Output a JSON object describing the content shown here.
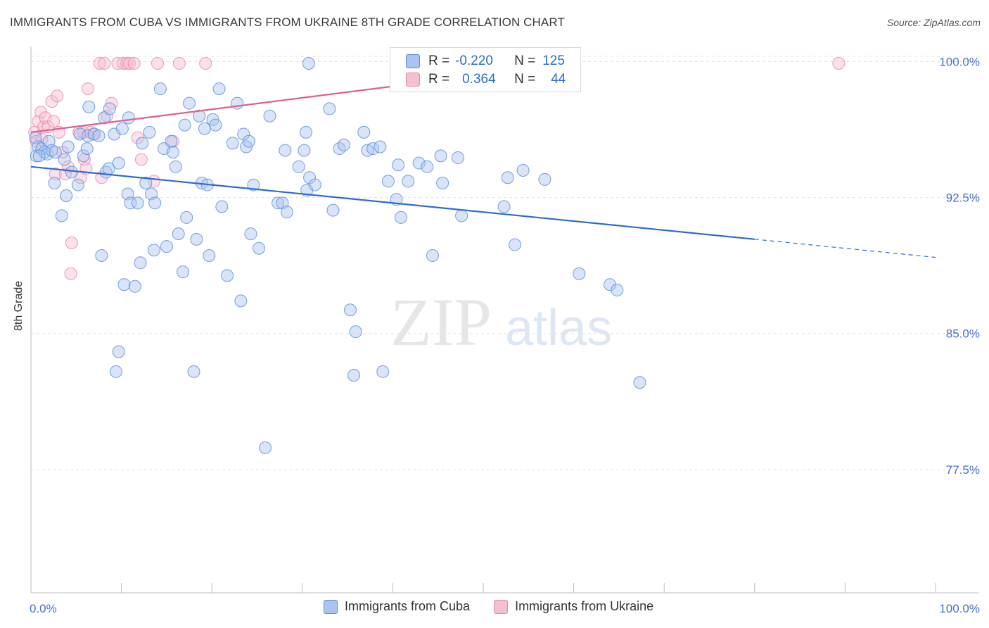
{
  "header": {
    "title": "IMMIGRANTS FROM CUBA VS IMMIGRANTS FROM UKRAINE 8TH GRADE CORRELATION CHART",
    "source": "Source: ZipAtlas.com"
  },
  "watermark": {
    "zip": "ZIP",
    "atlas": "atlas"
  },
  "legend": {
    "cuba": {
      "r_label": "R =",
      "r_value": "-0.220",
      "n_label": "N =",
      "n_value": "125"
    },
    "ukraine": {
      "r_label": "R =",
      "r_value": "0.364",
      "n_label": "N =",
      "n_value": "44"
    }
  },
  "colors": {
    "cuba_fill": "#aac4ee",
    "cuba_stroke": "#5b8ee0",
    "cuba_line": "#2f6bce",
    "ukraine_fill": "#f6bfd0",
    "ukraine_stroke": "#e88aa8",
    "ukraine_line": "#e0608a",
    "tick_text": "#4472c4",
    "grid": "#e3e3e3"
  },
  "chart_data": {
    "type": "scatter",
    "title": "IMMIGRANTS FROM CUBA VS IMMIGRANTS FROM UKRAINE 8TH GRADE CORRELATION CHART",
    "xlabel": "",
    "ylabel": "8th Grade",
    "xlim": [
      0,
      100
    ],
    "ylim": [
      70.7,
      100.6
    ],
    "x_ticks": [
      "0.0%",
      "100.0%"
    ],
    "y_ticks": [
      {
        "value": 100.0,
        "label": "100.0%"
      },
      {
        "value": 92.5,
        "label": "92.5%"
      },
      {
        "value": 85.0,
        "label": "85.0%"
      },
      {
        "value": 77.5,
        "label": "77.5%"
      }
    ],
    "grid": true,
    "legend_position": "top-center and bottom",
    "series": [
      {
        "name": "Immigrants from Cuba",
        "r": -0.22,
        "n": 125,
        "trend": {
          "x0": 0,
          "y0": 94.2,
          "x1": 80,
          "y1": 90.2,
          "dashed_to_x": 100,
          "dashed_to_y": 89.2
        },
        "points": [
          [
            0.5,
            95.8
          ],
          [
            0.6,
            94.8
          ],
          [
            0.8,
            95.3
          ],
          [
            1.2,
            95.2
          ],
          [
            1.5,
            95.0
          ],
          [
            1.8,
            94.9
          ],
          [
            2.0,
            95.6
          ],
          [
            2.3,
            95.1
          ],
          [
            2.6,
            93.3
          ],
          [
            3.4,
            91.5
          ],
          [
            3.9,
            92.6
          ],
          [
            4.1,
            95.3
          ],
          [
            3.7,
            94.6
          ],
          [
            4.5,
            93.9
          ],
          [
            5.2,
            93.2
          ],
          [
            5.4,
            96.0
          ],
          [
            5.8,
            94.8
          ],
          [
            6.2,
            95.2
          ],
          [
            6.4,
            97.5
          ],
          [
            6.3,
            95.9
          ],
          [
            7.0,
            96.0
          ],
          [
            7.5,
            95.9
          ],
          [
            7.8,
            89.3
          ],
          [
            8.1,
            96.9
          ],
          [
            8.3,
            93.9
          ],
          [
            8.7,
            97.4
          ],
          [
            8.6,
            94.1
          ],
          [
            9.2,
            96.0
          ],
          [
            9.4,
            82.9
          ],
          [
            9.7,
            84.0
          ],
          [
            10.1,
            96.3
          ],
          [
            10.3,
            87.7
          ],
          [
            10.7,
            92.7
          ],
          [
            10.8,
            96.9
          ],
          [
            11.0,
            92.2
          ],
          [
            11.5,
            87.6
          ],
          [
            11.8,
            92.2
          ],
          [
            12.1,
            88.9
          ],
          [
            12.3,
            95.5
          ],
          [
            12.7,
            93.3
          ],
          [
            13.1,
            96.1
          ],
          [
            13.3,
            92.7
          ],
          [
            13.6,
            89.6
          ],
          [
            13.7,
            92.2
          ],
          [
            14.3,
            98.5
          ],
          [
            14.7,
            95.2
          ],
          [
            15.0,
            89.8
          ],
          [
            15.5,
            95.6
          ],
          [
            15.7,
            95.0
          ],
          [
            16.0,
            94.2
          ],
          [
            16.3,
            90.5
          ],
          [
            16.8,
            88.4
          ],
          [
            17.0,
            96.5
          ],
          [
            17.2,
            91.4
          ],
          [
            17.5,
            97.7
          ],
          [
            18.0,
            82.9
          ],
          [
            18.3,
            90.2
          ],
          [
            18.6,
            97.0
          ],
          [
            18.9,
            93.3
          ],
          [
            19.2,
            96.3
          ],
          [
            19.5,
            93.2
          ],
          [
            19.7,
            89.3
          ],
          [
            20.1,
            96.8
          ],
          [
            20.4,
            96.5
          ],
          [
            20.8,
            98.5
          ],
          [
            21.1,
            92.0
          ],
          [
            21.7,
            88.2
          ],
          [
            22.3,
            95.5
          ],
          [
            22.8,
            97.7
          ],
          [
            23.2,
            86.8
          ],
          [
            23.5,
            96.0
          ],
          [
            23.8,
            95.3
          ],
          [
            24.1,
            95.6
          ],
          [
            24.3,
            90.5
          ],
          [
            24.6,
            93.2
          ],
          [
            25.2,
            89.7
          ],
          [
            25.9,
            78.7
          ],
          [
            26.4,
            97.0
          ],
          [
            27.3,
            92.2
          ],
          [
            27.8,
            92.2
          ],
          [
            28.1,
            95.1
          ],
          [
            28.3,
            91.7
          ],
          [
            29.6,
            94.2
          ],
          [
            30.2,
            95.1
          ],
          [
            30.4,
            96.1
          ],
          [
            30.5,
            92.9
          ],
          [
            30.8,
            93.6
          ],
          [
            31.4,
            93.2
          ],
          [
            33.0,
            97.4
          ],
          [
            33.4,
            91.8
          ],
          [
            34.1,
            95.2
          ],
          [
            34.6,
            95.4
          ],
          [
            35.3,
            86.3
          ],
          [
            35.7,
            82.7
          ],
          [
            35.9,
            85.1
          ],
          [
            36.8,
            96.1
          ],
          [
            37.2,
            95.1
          ],
          [
            37.8,
            95.2
          ],
          [
            38.6,
            95.3
          ],
          [
            38.9,
            82.9
          ],
          [
            39.5,
            93.4
          ],
          [
            40.4,
            92.4
          ],
          [
            40.6,
            94.3
          ],
          [
            40.9,
            91.4
          ],
          [
            41.7,
            93.4
          ],
          [
            42.9,
            94.4
          ],
          [
            43.8,
            94.2
          ],
          [
            44.4,
            89.3
          ],
          [
            45.3,
            94.8
          ],
          [
            45.5,
            93.3
          ],
          [
            47.2,
            94.7
          ],
          [
            47.6,
            91.5
          ],
          [
            52.3,
            92.0
          ],
          [
            52.7,
            93.6
          ],
          [
            53.5,
            89.9
          ],
          [
            54.4,
            94.0
          ],
          [
            56.8,
            93.5
          ],
          [
            60.6,
            88.3
          ],
          [
            64.0,
            87.7
          ],
          [
            64.8,
            87.4
          ],
          [
            67.3,
            82.3
          ],
          [
            30.7,
            99.9
          ],
          [
            0.9,
            94.8
          ],
          [
            2.7,
            95.0
          ],
          [
            9.7,
            94.4
          ]
        ]
      },
      {
        "name": "Immigrants from Ukraine",
        "r": 0.364,
        "n": 44,
        "trend": {
          "x0": 0,
          "y0": 96.1,
          "x1": 60,
          "y1": 99.9
        },
        "points": [
          [
            0.4,
            96.1
          ],
          [
            0.6,
            95.6
          ],
          [
            0.8,
            96.7
          ],
          [
            1.1,
            97.2
          ],
          [
            1.2,
            95.7
          ],
          [
            1.4,
            96.4
          ],
          [
            1.6,
            96.9
          ],
          [
            1.9,
            96.4
          ],
          [
            2.3,
            97.8
          ],
          [
            2.5,
            96.7
          ],
          [
            2.7,
            93.8
          ],
          [
            2.9,
            98.1
          ],
          [
            3.1,
            96.1
          ],
          [
            3.5,
            95.0
          ],
          [
            3.8,
            93.8
          ],
          [
            4.1,
            94.2
          ],
          [
            4.5,
            90.0
          ],
          [
            4.4,
            88.3
          ],
          [
            5.3,
            96.1
          ],
          [
            5.5,
            93.6
          ],
          [
            5.8,
            96.1
          ],
          [
            5.9,
            94.6
          ],
          [
            6.1,
            94.1
          ],
          [
            6.3,
            98.5
          ],
          [
            6.6,
            96.1
          ],
          [
            6.9,
            96.0
          ],
          [
            7.6,
            99.9
          ],
          [
            7.8,
            93.6
          ],
          [
            8.1,
            99.9
          ],
          [
            8.4,
            97.0
          ],
          [
            8.9,
            97.7
          ],
          [
            9.6,
            99.9
          ],
          [
            10.2,
            99.9
          ],
          [
            10.6,
            99.9
          ],
          [
            10.9,
            99.9
          ],
          [
            11.4,
            99.9
          ],
          [
            11.8,
            95.8
          ],
          [
            12.2,
            94.6
          ],
          [
            13.6,
            93.4
          ],
          [
            14.0,
            99.9
          ],
          [
            15.7,
            95.6
          ],
          [
            16.4,
            99.9
          ],
          [
            19.3,
            99.9
          ],
          [
            89.3,
            99.9
          ]
        ]
      }
    ]
  }
}
